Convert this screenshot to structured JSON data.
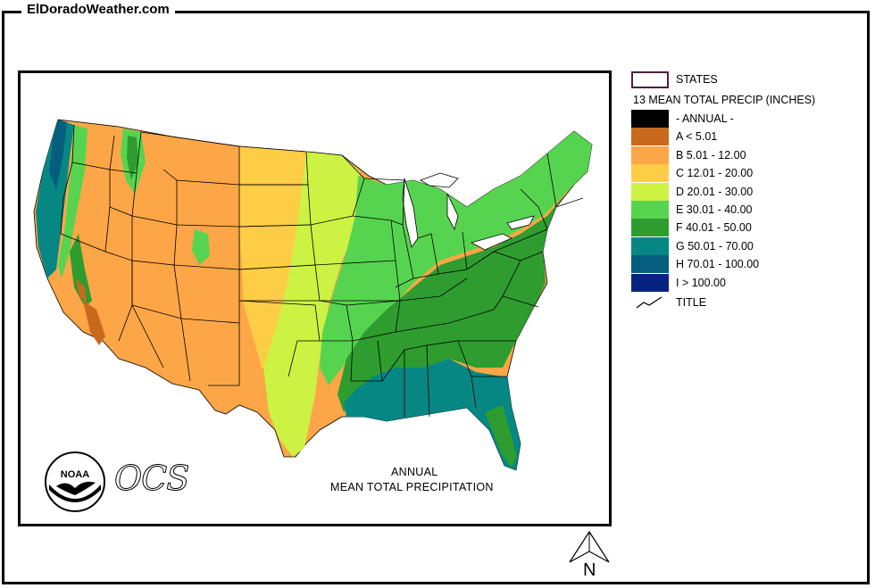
{
  "site": {
    "label": "ElDoradoWeather.com"
  },
  "map": {
    "caption_line1": "ANNUAL",
    "caption_line2": "MEAN TOTAL PRECIPITATION",
    "logo_noaa_text": "NOAA",
    "logo_ocs_text": "OCS",
    "north_label": "N"
  },
  "legend": {
    "states_label": "STATES",
    "heading": "13 MEAN TOTAL PRECIP (INCHES)",
    "title_label": "TITLE",
    "items": [
      {
        "label": "- ANNUAL -",
        "color": "#000000"
      },
      {
        "label": "A < 5.01",
        "color": "#c8691e"
      },
      {
        "label": "B 5.01 - 12.00",
        "color": "#fca647"
      },
      {
        "label": "C 12.01 - 20.00",
        "color": "#fdcd45"
      },
      {
        "label": "D 20.01 - 30.00",
        "color": "#ccf244"
      },
      {
        "label": "E 30.01 - 40.00",
        "color": "#57d44f"
      },
      {
        "label": "F 40.01 - 50.00",
        "color": "#2e9c2f"
      },
      {
        "label": "G 50.01 - 70.00",
        "color": "#068784"
      },
      {
        "label": "H 70.01 - 100.00",
        "color": "#055e7d"
      },
      {
        "label": "I > 100.00",
        "color": "#072382"
      }
    ]
  }
}
